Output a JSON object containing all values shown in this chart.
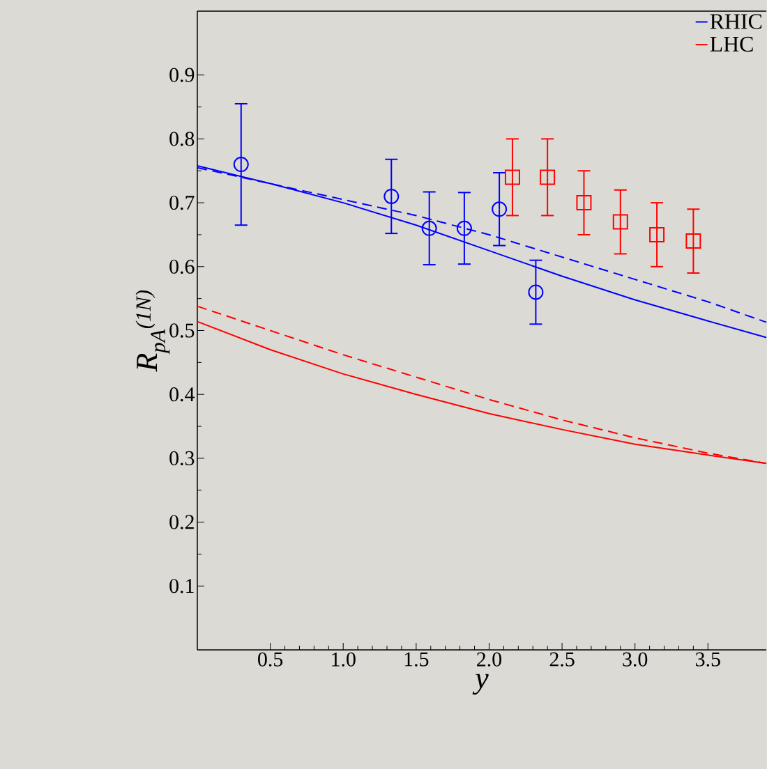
{
  "chart_data": {
    "type": "line",
    "xlabel": "y",
    "ylabel": "R$_{pA}$$^{(1N)}$",
    "xlim": [
      0,
      3.9
    ],
    "ylim": [
      0,
      1.0
    ],
    "xticks": [
      0.5,
      {
        "value": 1.0,
        "label": "1.0"
      },
      1.5,
      {
        "value": 2.0,
        "label": "2.0"
      },
      2.5,
      {
        "value": 3.0,
        "label": "3.0"
      },
      3.5
    ],
    "yticks": [
      0.1,
      0.2,
      0.3,
      0.4,
      0.5,
      0.6,
      0.7,
      0.8,
      0.9
    ],
    "legend": "top right",
    "marker": "none",
    "series": [
      {
        "name": "RHIC",
        "color": "#0000ff",
        "line_style": "solid",
        "x": [
          0,
          0.5,
          1.0,
          1.5,
          2.0,
          2.5,
          3.0,
          3.5,
          3.9
        ],
        "values": [
          0.758,
          0.73,
          0.7,
          0.665,
          0.625,
          0.585,
          0.548,
          0.515,
          0.489
        ]
      },
      {
        "name": "LHC",
        "color": "#ff0000",
        "line_style": "solid",
        "x": [
          0,
          0.5,
          1.0,
          1.5,
          2.0,
          2.5,
          3.0,
          3.5,
          3.9
        ],
        "values": [
          0.514,
          0.47,
          0.432,
          0.4,
          0.37,
          0.345,
          0.322,
          0.305,
          0.292
        ]
      },
      {
        "color": "#0000ff",
        "line_style": "dashed",
        "x": [
          0,
          0.5,
          1.0,
          1.5,
          2.0,
          2.5,
          3.0,
          3.5,
          3.9
        ],
        "values": [
          0.755,
          0.73,
          0.705,
          0.68,
          0.65,
          0.615,
          0.58,
          0.545,
          0.513
        ]
      },
      {
        "color": "#ff0000",
        "line_style": "dashed",
        "x": [
          0,
          0.5,
          1.0,
          1.5,
          2.0,
          2.5,
          3.0,
          3.5,
          3.9
        ],
        "values": [
          0.538,
          0.5,
          0.462,
          0.427,
          0.392,
          0.36,
          0.332,
          0.308,
          0.292
        ]
      },
      {
        "type": "scatter",
        "marker": "circle",
        "color": "#0000ff",
        "x": [
          0.3,
          1.33,
          1.59,
          1.83,
          2.07,
          2.32
        ],
        "values": [
          0.76,
          0.71,
          0.66,
          0.66,
          0.69,
          0.56
        ],
        "errors": [
          0.095,
          0.058,
          0.057,
          0.056,
          0.057,
          0.05
        ]
      },
      {
        "type": "scatter",
        "marker": "square",
        "color": "#ff0000",
        "x": [
          2.16,
          2.4,
          2.65,
          2.9,
          3.15,
          3.4
        ],
        "values": [
          0.74,
          0.74,
          0.7,
          0.67,
          0.65,
          0.64
        ],
        "errors": [
          0.06,
          0.06,
          0.05,
          0.05,
          0.05,
          0.05
        ]
      }
    ]
  }
}
